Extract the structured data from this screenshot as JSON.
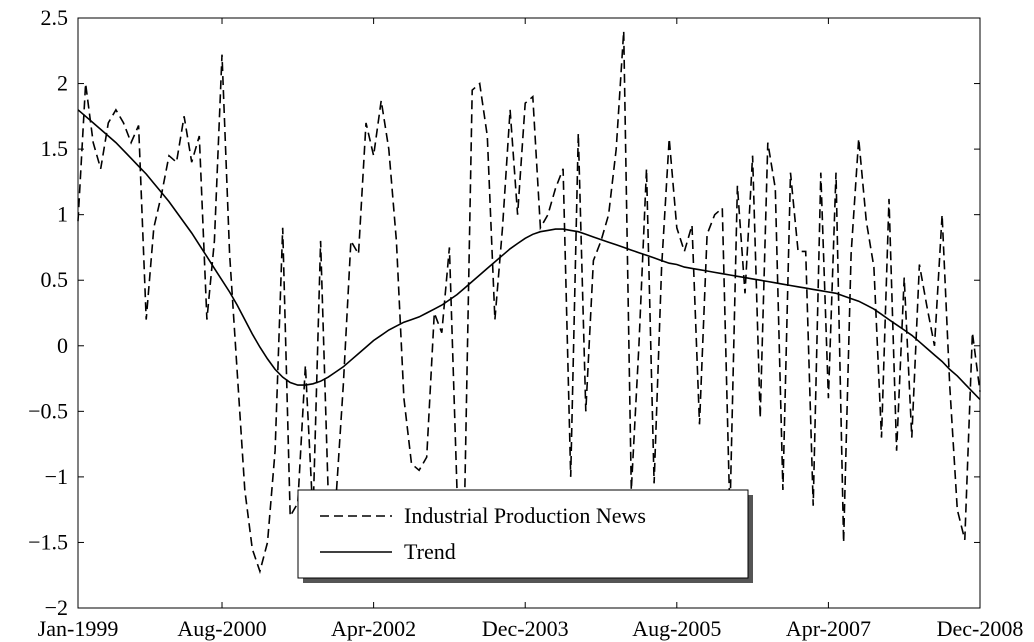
{
  "chart_data": {
    "type": "line",
    "x": [
      "Jan-1999",
      "Feb-1999",
      "Mar-1999",
      "Apr-1999",
      "May-1999",
      "Jun-1999",
      "Jul-1999",
      "Aug-1999",
      "Sep-1999",
      "Oct-1999",
      "Nov-1999",
      "Dec-1999",
      "Jan-2000",
      "Feb-2000",
      "Mar-2000",
      "Apr-2000",
      "May-2000",
      "Jun-2000",
      "Jul-2000",
      "Aug-2000",
      "Sep-2000",
      "Oct-2000",
      "Nov-2000",
      "Dec-2000",
      "Jan-2001",
      "Feb-2001",
      "Mar-2001",
      "Apr-2001",
      "May-2001",
      "Jun-2001",
      "Jul-2001",
      "Aug-2001",
      "Sep-2001",
      "Oct-2001",
      "Nov-2001",
      "Dec-2001",
      "Jan-2002",
      "Feb-2002",
      "Mar-2002",
      "Apr-2002",
      "May-2002",
      "Jun-2002",
      "Jul-2002",
      "Aug-2002",
      "Sep-2002",
      "Oct-2002",
      "Nov-2002",
      "Dec-2002",
      "Jan-2003",
      "Feb-2003",
      "Mar-2003",
      "Apr-2003",
      "May-2003",
      "Jun-2003",
      "Jul-2003",
      "Aug-2003",
      "Sep-2003",
      "Oct-2003",
      "Nov-2003",
      "Dec-2003",
      "Jan-2004",
      "Feb-2004",
      "Mar-2004",
      "Apr-2004",
      "May-2004",
      "Jun-2004",
      "Jul-2004",
      "Aug-2004",
      "Sep-2004",
      "Oct-2004",
      "Nov-2004",
      "Dec-2004",
      "Jan-2005",
      "Feb-2005",
      "Mar-2005",
      "Apr-2005",
      "May-2005",
      "Jun-2005",
      "Jul-2005",
      "Aug-2005",
      "Sep-2005",
      "Oct-2005",
      "Nov-2005",
      "Dec-2005",
      "Jan-2006",
      "Feb-2006",
      "Mar-2006",
      "Apr-2006",
      "May-2006",
      "Jun-2006",
      "Jul-2006",
      "Aug-2006",
      "Sep-2006",
      "Oct-2006",
      "Nov-2006",
      "Dec-2006",
      "Jan-2007",
      "Feb-2007",
      "Mar-2007",
      "Apr-2007",
      "May-2007",
      "Jun-2007",
      "Jul-2007",
      "Aug-2007",
      "Sep-2007",
      "Oct-2007",
      "Nov-2007",
      "Dec-2007",
      "Jan-2008",
      "Feb-2008",
      "Mar-2008",
      "Apr-2008",
      "May-2008",
      "Jun-2008",
      "Jul-2008",
      "Aug-2008",
      "Sep-2008",
      "Oct-2008",
      "Nov-2008",
      "Dec-2008"
    ],
    "xticks": [
      "Jan-1999",
      "Aug-2000",
      "Apr-2002",
      "Dec-2003",
      "Aug-2005",
      "Apr-2007",
      "Dec-2008"
    ],
    "ylim": [
      -2,
      2.5
    ],
    "yticks": [
      {
        "value": -2,
        "label": "−2"
      },
      {
        "value": -1.5,
        "label": "−1.5"
      },
      {
        "value": -1,
        "label": "−1"
      },
      {
        "value": -0.5,
        "label": "−0.5"
      },
      0,
      0.5,
      1,
      1.5,
      2,
      2.5
    ],
    "legend": "bottom-center",
    "series": [
      {
        "name": "Industrial Production News",
        "color": "#000000",
        "dash": true,
        "values": [
          0.95,
          2.0,
          1.55,
          1.35,
          1.7,
          1.8,
          1.7,
          1.55,
          1.68,
          0.2,
          0.9,
          1.15,
          1.45,
          1.4,
          1.75,
          1.4,
          1.6,
          0.2,
          0.8,
          2.22,
          0.7,
          -0.2,
          -1.1,
          -1.55,
          -1.72,
          -1.5,
          -0.8,
          0.9,
          -1.3,
          -1.2,
          -0.15,
          -1.3,
          0.8,
          -1.1,
          -1.2,
          -0.3,
          0.8,
          0.7,
          1.7,
          1.45,
          1.87,
          1.5,
          0.8,
          -0.4,
          -0.9,
          -0.95,
          -0.85,
          0.25,
          0.1,
          0.75,
          -1.1,
          -1.2,
          1.95,
          2.0,
          1.6,
          0.2,
          0.9,
          1.8,
          1.0,
          1.85,
          1.9,
          0.9,
          1.0,
          1.2,
          1.35,
          -1.0,
          1.62,
          -0.5,
          0.65,
          0.8,
          1.0,
          1.5,
          2.4,
          -1.1,
          0.0,
          1.35,
          -1.05,
          0.6,
          1.58,
          0.9,
          0.72,
          0.92,
          -0.6,
          0.85,
          1.0,
          1.05,
          -1.3,
          1.22,
          0.4,
          1.45,
          -0.55,
          1.55,
          1.2,
          -1.1,
          1.32,
          0.72,
          0.72,
          -1.22,
          1.32,
          -0.4,
          1.32,
          -1.5,
          0.7,
          1.58,
          0.95,
          0.6,
          -0.7,
          1.12,
          -0.8,
          0.52,
          -0.7,
          0.62,
          0.3,
          0.0,
          1.0,
          -0.3,
          -1.25,
          -1.48,
          0.1,
          -0.35
        ]
      },
      {
        "name": "Trend",
        "color": "#000000",
        "dash": false,
        "values": [
          1.8,
          1.75,
          1.7,
          1.65,
          1.6,
          1.55,
          1.49,
          1.43,
          1.37,
          1.31,
          1.24,
          1.17,
          1.1,
          1.02,
          0.94,
          0.86,
          0.77,
          0.68,
          0.59,
          0.5,
          0.41,
          0.31,
          0.2,
          0.09,
          -0.01,
          -0.1,
          -0.18,
          -0.24,
          -0.28,
          -0.3,
          -0.3,
          -0.29,
          -0.27,
          -0.24,
          -0.2,
          -0.16,
          -0.11,
          -0.06,
          -0.01,
          0.04,
          0.08,
          0.12,
          0.15,
          0.18,
          0.2,
          0.22,
          0.25,
          0.28,
          0.31,
          0.35,
          0.39,
          0.44,
          0.49,
          0.54,
          0.59,
          0.64,
          0.69,
          0.74,
          0.78,
          0.82,
          0.85,
          0.87,
          0.88,
          0.89,
          0.89,
          0.88,
          0.87,
          0.85,
          0.83,
          0.81,
          0.79,
          0.77,
          0.75,
          0.73,
          0.71,
          0.69,
          0.67,
          0.65,
          0.63,
          0.62,
          0.6,
          0.59,
          0.58,
          0.57,
          0.56,
          0.55,
          0.54,
          0.53,
          0.52,
          0.51,
          0.5,
          0.49,
          0.48,
          0.47,
          0.46,
          0.45,
          0.44,
          0.43,
          0.42,
          0.41,
          0.4,
          0.38,
          0.36,
          0.34,
          0.31,
          0.28,
          0.24,
          0.2,
          0.16,
          0.12,
          0.08,
          0.03,
          -0.02,
          -0.07,
          -0.12,
          -0.18,
          -0.23,
          -0.29,
          -0.35,
          -0.41
        ]
      }
    ]
  }
}
